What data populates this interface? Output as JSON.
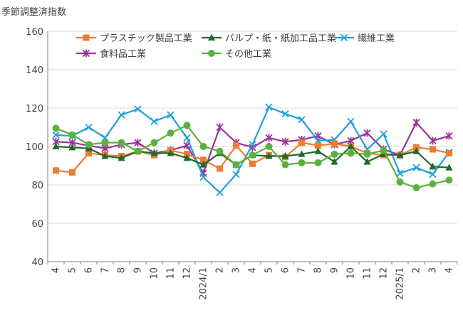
{
  "chart_data": {
    "type": "line",
    "ylabel": "季節調整済指数",
    "ylim": [
      40,
      160
    ],
    "yticks": [
      40,
      60,
      80,
      100,
      120,
      140,
      160
    ],
    "grid": true,
    "legend_placement": "top",
    "categories": [
      "4",
      "5",
      "6",
      "7",
      "8",
      "9",
      "10",
      "11",
      "12",
      "2024/1",
      "2",
      "3",
      "4",
      "5",
      "6",
      "7",
      "8",
      "9",
      "10",
      "11",
      "12",
      "2025/1",
      "2",
      "3",
      "4"
    ],
    "series": [
      {
        "name": "プラスチック製品工業",
        "color": "#ED7D31",
        "marker": "square",
        "values": [
          87.5,
          86.5,
          96.5,
          95.5,
          95,
          97.5,
          95.5,
          98,
          96,
          93,
          88.5,
          100.5,
          91,
          95.5,
          94.5,
          102,
          100.5,
          101.5,
          100,
          96.5,
          95.5,
          95.5,
          99.5,
          98.5,
          96.5
        ]
      },
      {
        "name": "パルプ・紙・紙加工品工業",
        "color": "#1F6B2E",
        "marker": "triangle",
        "values": [
          100,
          99.5,
          99,
          95,
          94,
          97.5,
          96.5,
          96.5,
          94,
          90.5,
          96.5,
          90.5,
          95.5,
          95,
          95,
          96,
          97.5,
          92,
          100,
          92,
          96,
          95.5,
          97.5,
          89.5,
          89
        ]
      },
      {
        "name": "繊維工業",
        "color": "#1EA0D8",
        "marker": "x",
        "values": [
          106,
          105.5,
          110,
          104.5,
          116.5,
          119.5,
          113,
          116.5,
          104.5,
          84,
          76,
          85.5,
          101,
          120.5,
          117,
          114,
          103,
          103.5,
          113,
          98.5,
          106.5,
          86,
          89,
          85.5,
          97
        ]
      },
      {
        "name": "食料品工業",
        "color": "#993399",
        "marker": "star",
        "values": [
          102.5,
          102,
          100.5,
          99,
          101,
          102,
          96.5,
          98,
          100.5,
          86,
          110,
          102,
          99.5,
          104.5,
          102.5,
          103.5,
          105.5,
          101,
          103,
          107,
          98.5,
          95.5,
          112.5,
          103,
          105.5
        ]
      },
      {
        "name": "その他工業",
        "color": "#5CB040",
        "marker": "circle",
        "values": [
          109.5,
          106,
          101,
          102,
          102,
          97.5,
          102,
          107,
          111,
          100,
          97.5,
          90.5,
          95.5,
          100,
          90.5,
          91.5,
          91.5,
          96,
          96.5,
          96,
          98,
          81.5,
          78.5,
          80.5,
          82.5
        ]
      }
    ]
  }
}
